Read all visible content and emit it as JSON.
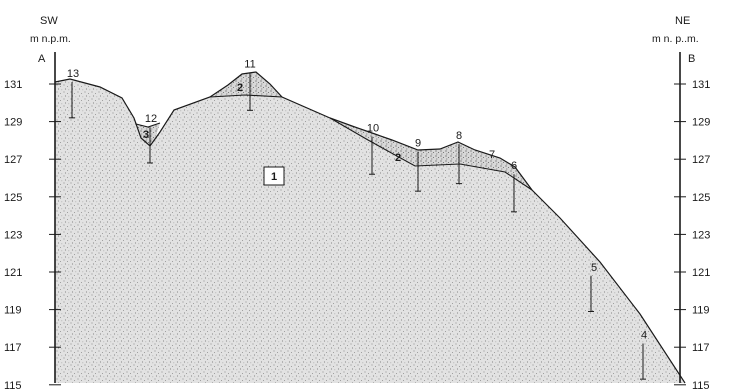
{
  "header": {
    "left_dir": "SW",
    "right_dir": "NE",
    "left_unit": "m n.p.m.",
    "right_unit": "m n. p..m.",
    "left_point": "A",
    "right_point": "B"
  },
  "elevation_ticks": [
    "131",
    "129",
    "127",
    "125",
    "123",
    "121",
    "119",
    "117",
    "115"
  ],
  "boreholes": [
    {
      "label": "13",
      "elev_top": 131.1,
      "elev_bottom": 129.2
    },
    {
      "label": "12",
      "elev_top": 128.7,
      "elev_bottom": 126.8
    },
    {
      "label": "11",
      "elev_top": 131.6,
      "elev_bottom": 129.6
    },
    {
      "label": "10",
      "elev_top": 128.2,
      "elev_bottom": 126.2
    },
    {
      "label": "9",
      "elev_top": 127.4,
      "elev_bottom": 125.3
    },
    {
      "label": "8",
      "elev_top": 127.8,
      "elev_bottom": 125.7
    },
    {
      "label": "7",
      "elev_top": 126.8,
      "elev_bottom": null
    },
    {
      "label": "6",
      "elev_top": 126.2,
      "elev_bottom": 124.2
    },
    {
      "label": "5",
      "elev_top": 120.8,
      "elev_bottom": 118.9
    },
    {
      "label": "4",
      "elev_top": 117.2,
      "elev_bottom": 115.3
    }
  ],
  "layer_labels": {
    "main": "1",
    "upper_left": "2",
    "upper_right": "2",
    "depression": "3"
  },
  "colors": {
    "line": "#1a1a1a",
    "fill_base": "#e2e2e2",
    "stipple": "#7a7a7a"
  }
}
